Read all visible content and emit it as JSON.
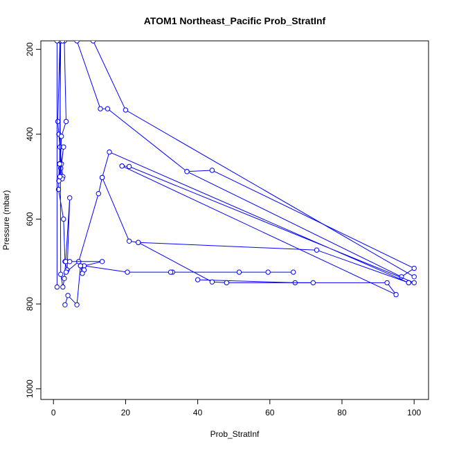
{
  "chart_data": {
    "type": "line",
    "title": "ATOM1 Northeast_Pacific Prob_StratInf",
    "xlabel": "Prob_StratInf",
    "ylabel": "Pressure (mbar)",
    "xlim": [
      -3.5,
      104
    ],
    "ylim": [
      1025,
      180
    ],
    "y_reversed": true,
    "x_ticks": [
      0,
      20,
      40,
      60,
      80,
      100
    ],
    "y_ticks": [
      200,
      400,
      600,
      800,
      1000
    ],
    "x_tick_labels": [
      "0",
      "20",
      "40",
      "60",
      "80",
      "100"
    ],
    "y_tick_labels": [
      "200",
      "400",
      "600",
      "800",
      "1000"
    ],
    "series_color": "#0000ff",
    "marker": "open-circle",
    "grid": false,
    "series": [
      {
        "x": [
          1.8,
          1.2,
          1.5,
          1.8,
          2.2,
          2.6,
          2.4,
          2.0,
          1.6,
          1.4,
          2.8,
          3.2,
          3.8,
          4.5,
          3.4,
          3.0,
          2.6,
          2.0,
          1.8
        ],
        "y": [
          180,
          370,
          400,
          430,
          470,
          500,
          505,
          480,
          470,
          530,
          600,
          700,
          720,
          550,
          700,
          740,
          760,
          730,
          180
        ]
      },
      {
        "x": [
          3.0,
          3.5,
          2.2,
          1.8,
          2.8,
          1.5,
          1.7,
          2.0
        ],
        "y": [
          180,
          370,
          405,
          500,
          430,
          510,
          470,
          180
        ]
      },
      {
        "x": [
          1.0,
          1.0,
          2.5
        ],
        "y": [
          760,
          180,
          180
        ]
      },
      {
        "x": [
          6.5,
          13,
          15,
          37,
          44,
          100,
          96.5,
          37
        ],
        "y": [
          180,
          340,
          340,
          488,
          485,
          716,
          736,
          488
        ]
      },
      {
        "x": [
          11,
          20,
          100
        ],
        "y": [
          180,
          343,
          736
        ]
      },
      {
        "x": [
          3.5,
          7.0,
          12.5,
          13.5,
          15.5,
          98.5,
          100,
          21,
          19
        ],
        "y": [
          725,
          700,
          540,
          502,
          442,
          750,
          750,
          476,
          475
        ]
      },
      {
        "x": [
          19,
          95,
          92.5,
          67,
          40
        ],
        "y": [
          475,
          778,
          750,
          750,
          743
        ]
      },
      {
        "x": [
          13.5,
          21,
          23.5,
          73,
          98.5
        ],
        "y": [
          502,
          652,
          655,
          673,
          750
        ]
      },
      {
        "x": [
          4.5,
          13.5,
          8.5,
          20.5,
          33,
          32.5,
          51.5,
          59.5,
          66.5
        ],
        "y": [
          700,
          700,
          710,
          725,
          725,
          725,
          725,
          725,
          725
        ]
      },
      {
        "x": [
          23.5,
          44,
          48,
          72
        ],
        "y": [
          655,
          748,
          750,
          750
        ]
      },
      {
        "x": [
          3.2,
          4.0,
          6.5,
          7.5,
          8.5,
          8.0,
          7.5
        ],
        "y": [
          802,
          780,
          802,
          710,
          720,
          728,
          710
        ]
      }
    ]
  }
}
